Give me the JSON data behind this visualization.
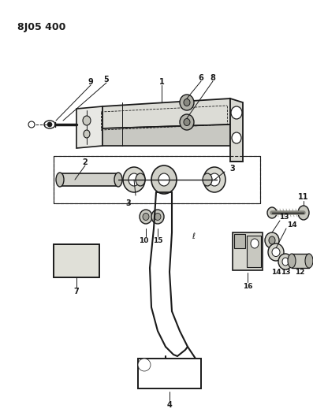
{
  "title": "8J05 400",
  "bg_color": "#f5f5f0",
  "line_color": "#1a1a1a",
  "fig_width": 3.97,
  "fig_height": 5.33,
  "dpi": 100
}
